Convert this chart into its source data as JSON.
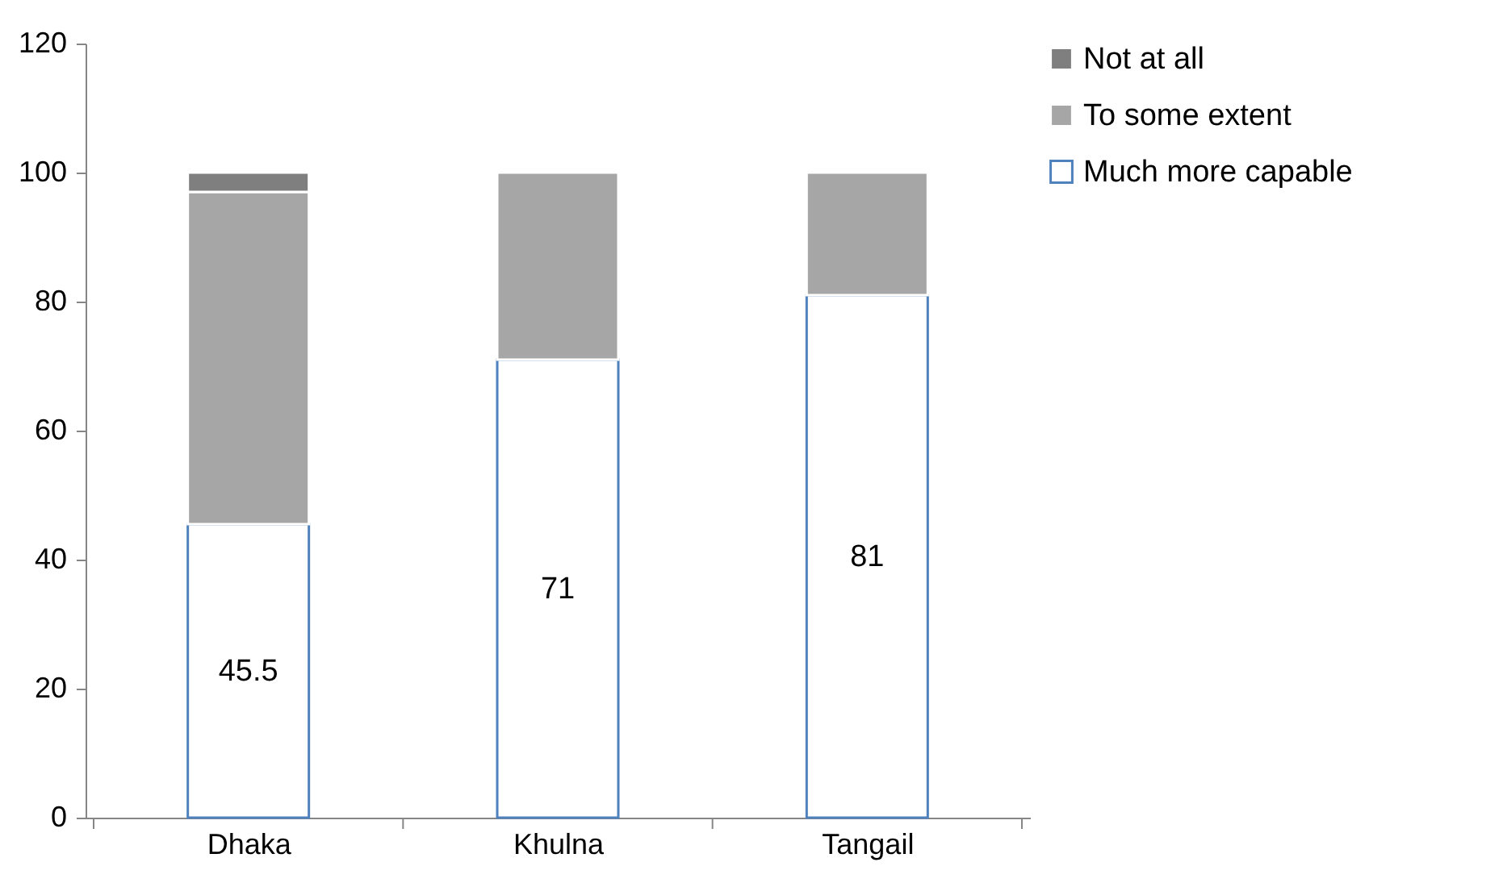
{
  "chart_data": {
    "type": "bar",
    "stacked": true,
    "categories": [
      "Dhaka",
      "Khulna",
      "Tangail"
    ],
    "series": [
      {
        "name": "Much more capable",
        "color": "#4f81bd",
        "values": [
          45.5,
          71,
          81
        ],
        "value_labels": [
          "45.5",
          "71",
          "81"
        ]
      },
      {
        "name": "To some extent",
        "color": "#a6a6a6",
        "values": [
          51.5,
          29,
          19
        ]
      },
      {
        "name": "Not at all",
        "color": "#7f7f7f",
        "values": [
          3,
          0,
          0
        ]
      }
    ],
    "ylim": [
      0,
      120
    ],
    "yticks": [
      0,
      20,
      40,
      60,
      80,
      100,
      120
    ],
    "grid": false,
    "legend": "right"
  }
}
